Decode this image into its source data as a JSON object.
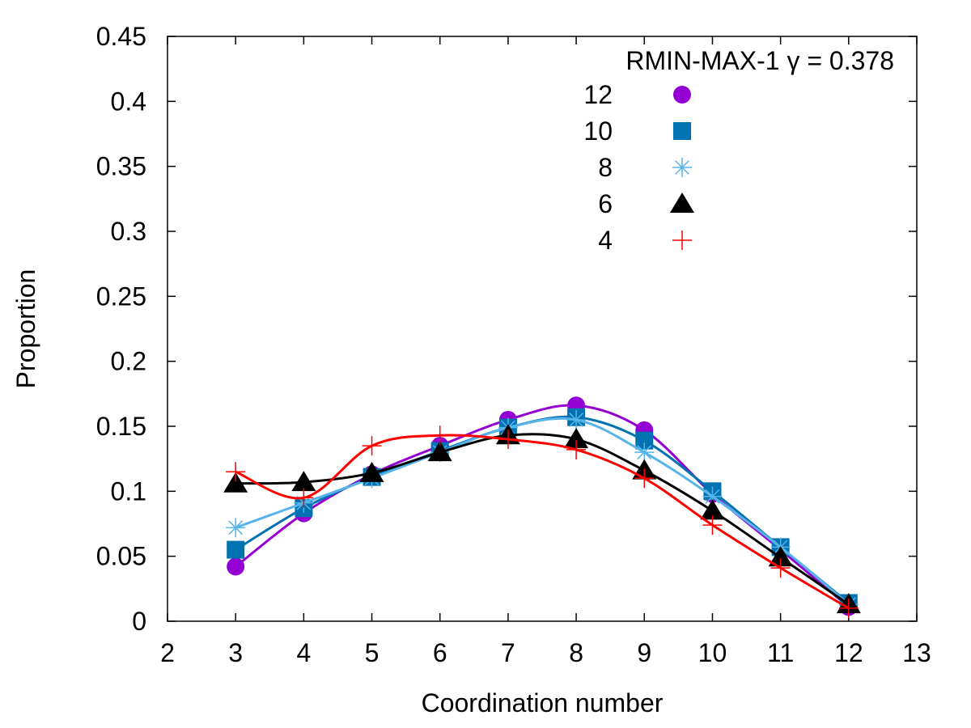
{
  "chart_data": {
    "type": "line",
    "title": "",
    "xlabel": "Coordination number",
    "ylabel": "Proportion",
    "xlim": [
      2,
      13
    ],
    "ylim": [
      0,
      0.45
    ],
    "xticks": [
      "2",
      "3",
      "4",
      "5",
      "6",
      "7",
      "8",
      "9",
      "10",
      "11",
      "12",
      "13"
    ],
    "yticks": [
      "0",
      "0.05",
      "0.1",
      "0.15",
      "0.2",
      "0.25",
      "0.3",
      "0.35",
      "0.4",
      "0.45"
    ],
    "legend_title": "RMIN-MAX-1 γ = 0.378",
    "legend_position": "top-right",
    "x": [
      3,
      4,
      5,
      6,
      7,
      8,
      9,
      10,
      11,
      12
    ],
    "series": [
      {
        "name": "12",
        "color": "#9400d3",
        "marker": "circle",
        "values": [
          0.042,
          0.083,
          0.113,
          0.135,
          0.155,
          0.166,
          0.147,
          0.098,
          0.055,
          0.011
        ]
      },
      {
        "name": "10",
        "color": "#0072b2",
        "marker": "square",
        "values": [
          0.055,
          0.087,
          0.111,
          0.131,
          0.149,
          0.157,
          0.139,
          0.1,
          0.057,
          0.014
        ]
      },
      {
        "name": "8",
        "color": "#56b4e9",
        "marker": "asterisk",
        "values": [
          0.072,
          0.091,
          0.11,
          0.13,
          0.149,
          0.155,
          0.13,
          0.096,
          0.057,
          0.013
        ]
      },
      {
        "name": "6",
        "color": "#000000",
        "marker": "triangle",
        "values": [
          0.106,
          0.107,
          0.114,
          0.13,
          0.143,
          0.14,
          0.116,
          0.085,
          0.049,
          0.013
        ]
      },
      {
        "name": "4",
        "color": "#ff0000",
        "marker": "plus",
        "values": [
          0.115,
          0.095,
          0.135,
          0.143,
          0.14,
          0.132,
          0.11,
          0.074,
          0.041,
          0.01
        ]
      }
    ]
  }
}
